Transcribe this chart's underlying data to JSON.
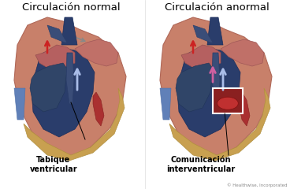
{
  "title_left": "Circulación normal",
  "title_right": "Circulación anormal",
  "label_left_line1": "Tabique",
  "label_left_line2": "ventricular",
  "label_right_line1": "Comunicación",
  "label_right_line2": "interventricular",
  "copyright": "© Healthwise, Incorporated",
  "bg_color": "#ffffff",
  "heart_outer_pink": "#c8806a",
  "heart_dark_blue": "#2a3d6b",
  "heart_mid_blue": "#3a5080",
  "heart_rv_blue": "#3d5878",
  "heart_light_pink": "#d9907a",
  "heart_gold": "#c8a050",
  "aorta_blue": "#3a4a70",
  "arrow_blue_light": "#8aabe0",
  "arrow_red": "#cc2222",
  "arrow_pink": "#d060a0",
  "box_color": "#ffffff",
  "atrium_pink": "#c07068",
  "muscle_red": "#aa3030"
}
